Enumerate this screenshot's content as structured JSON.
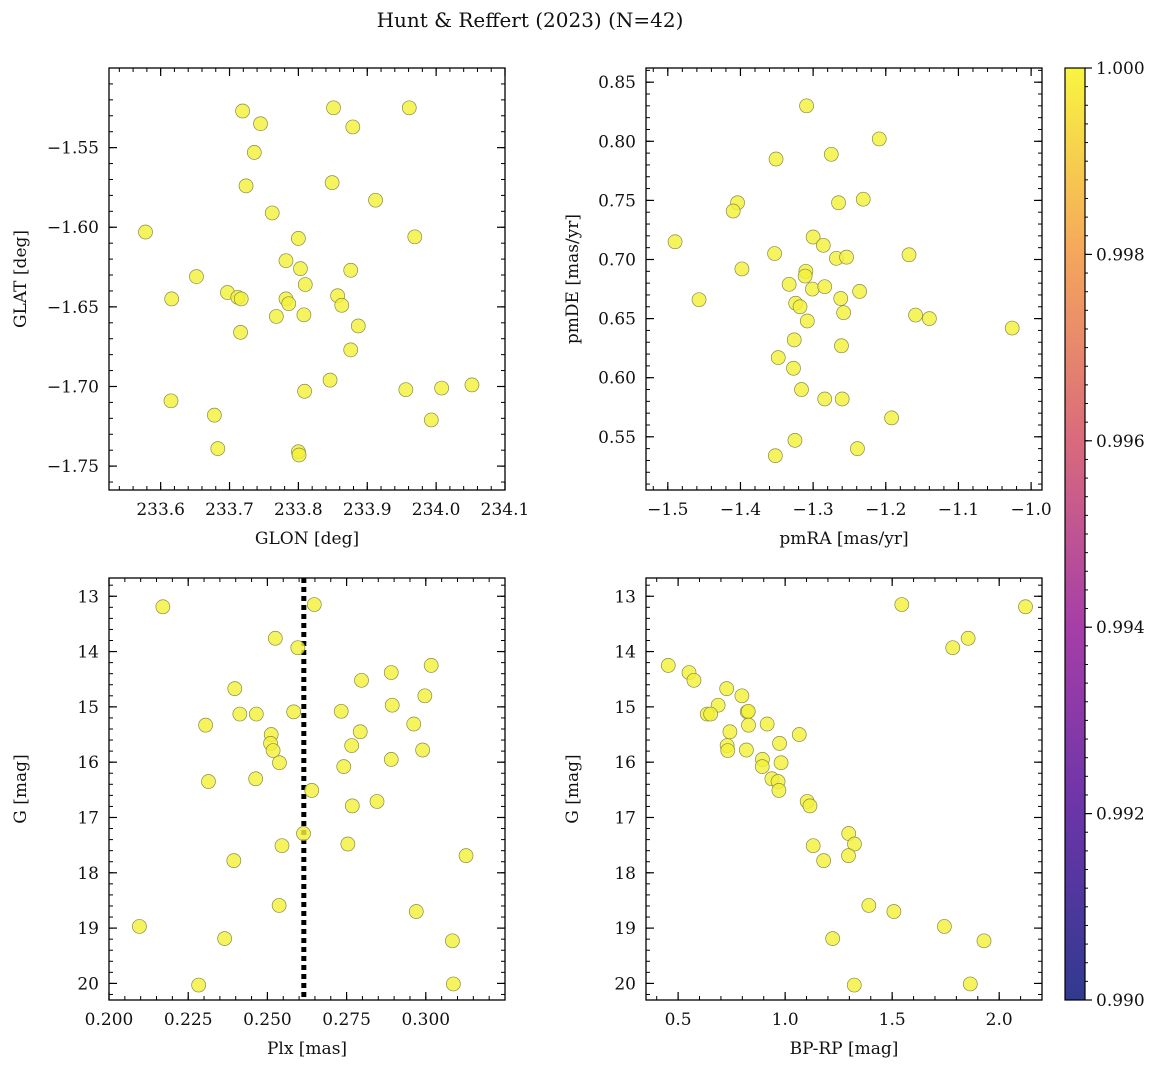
{
  "figure": {
    "title": "Hunt & Reffert (2023) (N=42)"
  },
  "colorbar": {
    "ticks": [
      {
        "value": 0.99,
        "label": "0.990"
      },
      {
        "value": 0.992,
        "label": "0.992"
      },
      {
        "value": 0.994,
        "label": "0.994"
      },
      {
        "value": 0.996,
        "label": "0.996"
      },
      {
        "value": 0.998,
        "label": "0.998"
      },
      {
        "value": 1.0,
        "label": "1.000"
      }
    ],
    "range": [
      0.99,
      1.0
    ],
    "colormap": "plasma",
    "colors": [
      "#303a8f",
      "#6a35a8",
      "#a63ea8",
      "#d96a7c",
      "#f5a65c",
      "#f8f540"
    ]
  },
  "chart_data": [
    {
      "type": "scatter",
      "panel": "top-left",
      "xlabel": "GLON [deg]",
      "ylabel": "GLAT [deg]",
      "xlim": [
        233.525,
        234.1
      ],
      "ylim": [
        -1.765,
        -1.5
      ],
      "y_inverted": false,
      "point_color": "#f3f23a",
      "xticks": [
        {
          "v": 233.6,
          "l": "233.6"
        },
        {
          "v": 233.7,
          "l": "233.7"
        },
        {
          "v": 233.8,
          "l": "233.8"
        },
        {
          "v": 233.9,
          "l": "233.9"
        },
        {
          "v": 234.0,
          "l": "234.0"
        },
        {
          "v": 234.1,
          "l": "234.1"
        }
      ],
      "yticks": [
        {
          "v": -1.55,
          "l": "−1.55"
        },
        {
          "v": -1.6,
          "l": "−1.60"
        },
        {
          "v": -1.65,
          "l": "−1.65"
        },
        {
          "v": -1.7,
          "l": "−1.70"
        },
        {
          "v": -1.75,
          "l": "−1.75"
        }
      ],
      "points": [
        [
          233.719,
          -1.527
        ],
        [
          233.745,
          -1.535
        ],
        [
          233.851,
          -1.525
        ],
        [
          233.961,
          -1.525
        ],
        [
          233.879,
          -1.537
        ],
        [
          233.736,
          -1.553
        ],
        [
          233.724,
          -1.574
        ],
        [
          233.849,
          -1.572
        ],
        [
          233.912,
          -1.583
        ],
        [
          233.762,
          -1.591
        ],
        [
          233.578,
          -1.603
        ],
        [
          233.8,
          -1.607
        ],
        [
          233.969,
          -1.606
        ],
        [
          233.782,
          -1.621
        ],
        [
          233.876,
          -1.627
        ],
        [
          233.803,
          -1.626
        ],
        [
          233.652,
          -1.631
        ],
        [
          233.81,
          -1.636
        ],
        [
          233.697,
          -1.641
        ],
        [
          233.616,
          -1.645
        ],
        [
          233.712,
          -1.644
        ],
        [
          233.717,
          -1.645
        ],
        [
          233.782,
          -1.645
        ],
        [
          233.857,
          -1.643
        ],
        [
          233.786,
          -1.648
        ],
        [
          233.863,
          -1.649
        ],
        [
          233.768,
          -1.656
        ],
        [
          233.808,
          -1.655
        ],
        [
          233.887,
          -1.662
        ],
        [
          233.716,
          -1.666
        ],
        [
          233.876,
          -1.677
        ],
        [
          233.846,
          -1.696
        ],
        [
          234.052,
          -1.699
        ],
        [
          233.956,
          -1.702
        ],
        [
          234.008,
          -1.701
        ],
        [
          233.809,
          -1.703
        ],
        [
          233.615,
          -1.709
        ],
        [
          233.678,
          -1.718
        ],
        [
          233.993,
          -1.721
        ],
        [
          233.683,
          -1.739
        ],
        [
          233.8,
          -1.741
        ],
        [
          233.801,
          -1.743
        ]
      ]
    },
    {
      "type": "scatter",
      "panel": "top-right",
      "xlabel": "pmRA [mas/yr]",
      "ylabel": "pmDE [mas/yr]",
      "xlim": [
        -1.53,
        -0.985
      ],
      "ylim": [
        0.505,
        0.862
      ],
      "y_inverted": false,
      "point_color": "#f3f23a",
      "xticks": [
        {
          "v": -1.5,
          "l": "−1.5"
        },
        {
          "v": -1.4,
          "l": "−1.4"
        },
        {
          "v": -1.3,
          "l": "−1.3"
        },
        {
          "v": -1.2,
          "l": "−1.2"
        },
        {
          "v": -1.1,
          "l": "−1.1"
        },
        {
          "v": -1.0,
          "l": "−1.0"
        }
      ],
      "yticks": [
        {
          "v": 0.55,
          "l": "0.55"
        },
        {
          "v": 0.6,
          "l": "0.60"
        },
        {
          "v": 0.65,
          "l": "0.65"
        },
        {
          "v": 0.7,
          "l": "0.70"
        },
        {
          "v": 0.75,
          "l": "0.75"
        },
        {
          "v": 0.8,
          "l": "0.80"
        },
        {
          "v": 0.85,
          "l": "0.85"
        }
      ],
      "points": [
        [
          -1.309,
          0.83
        ],
        [
          -1.209,
          0.802
        ],
        [
          -1.351,
          0.785
        ],
        [
          -1.275,
          0.789
        ],
        [
          -1.404,
          0.748
        ],
        [
          -1.41,
          0.741
        ],
        [
          -1.265,
          0.748
        ],
        [
          -1.231,
          0.751
        ],
        [
          -1.49,
          0.715
        ],
        [
          -1.3,
          0.719
        ],
        [
          -1.286,
          0.712
        ],
        [
          -1.353,
          0.705
        ],
        [
          -1.268,
          0.701
        ],
        [
          -1.254,
          0.702
        ],
        [
          -1.168,
          0.704
        ],
        [
          -1.398,
          0.692
        ],
        [
          -1.31,
          0.69
        ],
        [
          -1.311,
          0.686
        ],
        [
          -1.457,
          0.666
        ],
        [
          -1.333,
          0.679
        ],
        [
          -1.301,
          0.675
        ],
        [
          -1.284,
          0.677
        ],
        [
          -1.236,
          0.673
        ],
        [
          -1.262,
          0.667
        ],
        [
          -1.324,
          0.663
        ],
        [
          -1.318,
          0.66
        ],
        [
          -1.258,
          0.655
        ],
        [
          -1.159,
          0.653
        ],
        [
          -1.14,
          0.65
        ],
        [
          -1.308,
          0.648
        ],
        [
          -1.026,
          0.642
        ],
        [
          -1.326,
          0.632
        ],
        [
          -1.261,
          0.627
        ],
        [
          -1.348,
          0.617
        ],
        [
          -1.327,
          0.608
        ],
        [
          -1.316,
          0.59
        ],
        [
          -1.284,
          0.582
        ],
        [
          -1.26,
          0.582
        ],
        [
          -1.192,
          0.566
        ],
        [
          -1.325,
          0.547
        ],
        [
          -1.239,
          0.54
        ],
        [
          -1.352,
          0.534
        ]
      ]
    },
    {
      "type": "scatter",
      "panel": "bottom-left",
      "xlabel": "Plx [mas]",
      "ylabel": "G [mag]",
      "xlim": [
        0.2,
        0.325
      ],
      "ylim": [
        20.3,
        12.67
      ],
      "y_inverted": true,
      "point_color": "#f3f23a",
      "vline": {
        "x": 0.2615,
        "style": "dotted",
        "color": "#000000"
      },
      "xticks": [
        {
          "v": 0.2,
          "l": "0.200"
        },
        {
          "v": 0.225,
          "l": "0.225"
        },
        {
          "v": 0.25,
          "l": "0.250"
        },
        {
          "v": 0.275,
          "l": "0.275"
        },
        {
          "v": 0.3,
          "l": "0.300"
        }
      ],
      "yticks": [
        {
          "v": 13,
          "l": "13"
        },
        {
          "v": 14,
          "l": "14"
        },
        {
          "v": 15,
          "l": "15"
        },
        {
          "v": 16,
          "l": "16"
        },
        {
          "v": 17,
          "l": "17"
        },
        {
          "v": 18,
          "l": "18"
        },
        {
          "v": 19,
          "l": "19"
        },
        {
          "v": 20,
          "l": "20"
        }
      ],
      "points": [
        [
          0.217,
          13.19
        ],
        [
          0.2648,
          13.15
        ],
        [
          0.2525,
          13.76
        ],
        [
          0.2596,
          13.93
        ],
        [
          0.3017,
          14.25
        ],
        [
          0.2891,
          14.38
        ],
        [
          0.2397,
          14.67
        ],
        [
          0.2797,
          14.52
        ],
        [
          0.2997,
          14.8
        ],
        [
          0.2894,
          14.97
        ],
        [
          0.2305,
          15.33
        ],
        [
          0.2413,
          15.13
        ],
        [
          0.2465,
          15.13
        ],
        [
          0.2583,
          15.09
        ],
        [
          0.2733,
          15.08
        ],
        [
          0.2962,
          15.31
        ],
        [
          0.2793,
          15.45
        ],
        [
          0.2512,
          15.5
        ],
        [
          0.251,
          15.66
        ],
        [
          0.2518,
          15.79
        ],
        [
          0.2766,
          15.7
        ],
        [
          0.299,
          15.78
        ],
        [
          0.2538,
          16.01
        ],
        [
          0.2891,
          15.95
        ],
        [
          0.2741,
          16.08
        ],
        [
          0.2314,
          16.35
        ],
        [
          0.2463,
          16.3
        ],
        [
          0.264,
          16.51
        ],
        [
          0.2846,
          16.71
        ],
        [
          0.2768,
          16.79
        ],
        [
          0.2614,
          17.29
        ],
        [
          0.2546,
          17.51
        ],
        [
          0.2754,
          17.48
        ],
        [
          0.2394,
          17.78
        ],
        [
          0.3127,
          17.69
        ],
        [
          0.2537,
          18.59
        ],
        [
          0.297,
          18.7
        ],
        [
          0.2096,
          18.97
        ],
        [
          0.2365,
          19.19
        ],
        [
          0.3084,
          19.23
        ],
        [
          0.2283,
          20.03
        ],
        [
          0.3087,
          20.01
        ]
      ]
    },
    {
      "type": "scatter",
      "panel": "bottom-right",
      "xlabel": "BP-RP [mag]",
      "ylabel": "G [mag]",
      "xlim": [
        0.35,
        2.2
      ],
      "ylim": [
        20.3,
        12.67
      ],
      "y_inverted": true,
      "point_color": "#f3f23a",
      "xticks": [
        {
          "v": 0.5,
          "l": "0.5"
        },
        {
          "v": 1.0,
          "l": "1.0"
        },
        {
          "v": 1.5,
          "l": "1.5"
        },
        {
          "v": 2.0,
          "l": "2.0"
        }
      ],
      "yticks": [
        {
          "v": 13,
          "l": "13"
        },
        {
          "v": 14,
          "l": "14"
        },
        {
          "v": 15,
          "l": "15"
        },
        {
          "v": 16,
          "l": "16"
        },
        {
          "v": 17,
          "l": "17"
        },
        {
          "v": 18,
          "l": "18"
        },
        {
          "v": 19,
          "l": "19"
        },
        {
          "v": 20,
          "l": "20"
        }
      ],
      "points": [
        [
          1.545,
          13.15
        ],
        [
          2.123,
          13.19
        ],
        [
          1.855,
          13.76
        ],
        [
          1.783,
          13.93
        ],
        [
          0.454,
          14.25
        ],
        [
          0.551,
          14.38
        ],
        [
          0.574,
          14.52
        ],
        [
          0.727,
          14.67
        ],
        [
          0.798,
          14.8
        ],
        [
          0.687,
          14.97
        ],
        [
          0.823,
          15.09
        ],
        [
          0.828,
          15.08
        ],
        [
          0.636,
          15.13
        ],
        [
          0.652,
          15.13
        ],
        [
          0.916,
          15.31
        ],
        [
          0.829,
          15.33
        ],
        [
          0.742,
          15.45
        ],
        [
          1.066,
          15.5
        ],
        [
          0.974,
          15.66
        ],
        [
          0.729,
          15.7
        ],
        [
          0.732,
          15.79
        ],
        [
          0.819,
          15.78
        ],
        [
          0.981,
          16.01
        ],
        [
          0.894,
          15.95
        ],
        [
          0.893,
          16.08
        ],
        [
          0.938,
          16.3
        ],
        [
          0.967,
          16.35
        ],
        [
          0.971,
          16.51
        ],
        [
          1.103,
          16.71
        ],
        [
          1.116,
          16.79
        ],
        [
          1.297,
          17.29
        ],
        [
          1.131,
          17.51
        ],
        [
          1.324,
          17.48
        ],
        [
          1.296,
          17.69
        ],
        [
          1.18,
          17.78
        ],
        [
          1.391,
          18.59
        ],
        [
          1.508,
          18.7
        ],
        [
          1.744,
          18.97
        ],
        [
          1.222,
          19.19
        ],
        [
          1.929,
          19.23
        ],
        [
          1.323,
          20.03
        ],
        [
          1.865,
          20.01
        ]
      ]
    }
  ]
}
